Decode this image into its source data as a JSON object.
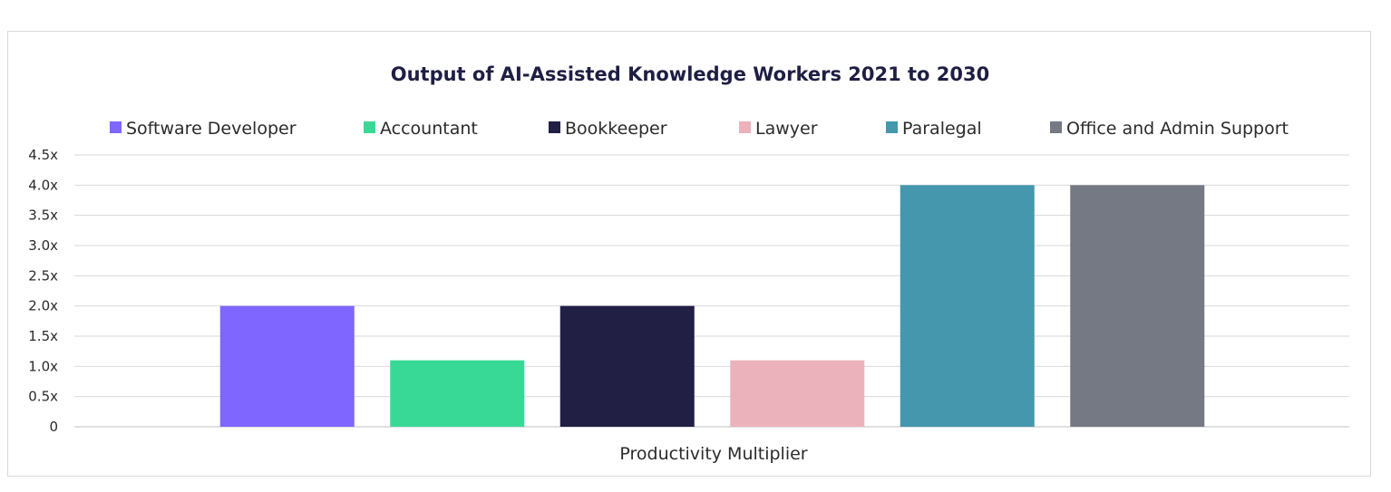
{
  "chart_data": {
    "type": "bar",
    "title": "Output of AI-Assisted Knowledge Workers 2021 to 2030",
    "xlabel": "Productivity Multiplier",
    "ylabel": "",
    "ylim": [
      0,
      4.5
    ],
    "grid": true,
    "legend_position": "top",
    "y_ticks": [
      {
        "value": 0,
        "label": "0"
      },
      {
        "value": 0.5,
        "label": "0.5x"
      },
      {
        "value": 1.0,
        "label": "1.0x"
      },
      {
        "value": 1.5,
        "label": "1.5x"
      },
      {
        "value": 2.0,
        "label": "2.0x"
      },
      {
        "value": 2.5,
        "label": "2.5x"
      },
      {
        "value": 3.0,
        "label": "3.0x"
      },
      {
        "value": 3.5,
        "label": "3.5x"
      },
      {
        "value": 4.0,
        "label": "4.0x"
      },
      {
        "value": 4.5,
        "label": "4.5x"
      }
    ],
    "series": [
      {
        "name": "Software Developer",
        "value": 2.0,
        "color": "#7f66ff"
      },
      {
        "name": "Accountant",
        "value": 1.1,
        "color": "#38d996"
      },
      {
        "name": "Bookkeeper",
        "value": 2.0,
        "color": "#211f44"
      },
      {
        "name": "Lawyer",
        "value": 1.1,
        "color": "#ecb2bc"
      },
      {
        "name": "Paralegal",
        "value": 4.0,
        "color": "#4497ad"
      },
      {
        "name": "Office and Admin Support",
        "value": 4.0,
        "color": "#757983"
      }
    ]
  }
}
